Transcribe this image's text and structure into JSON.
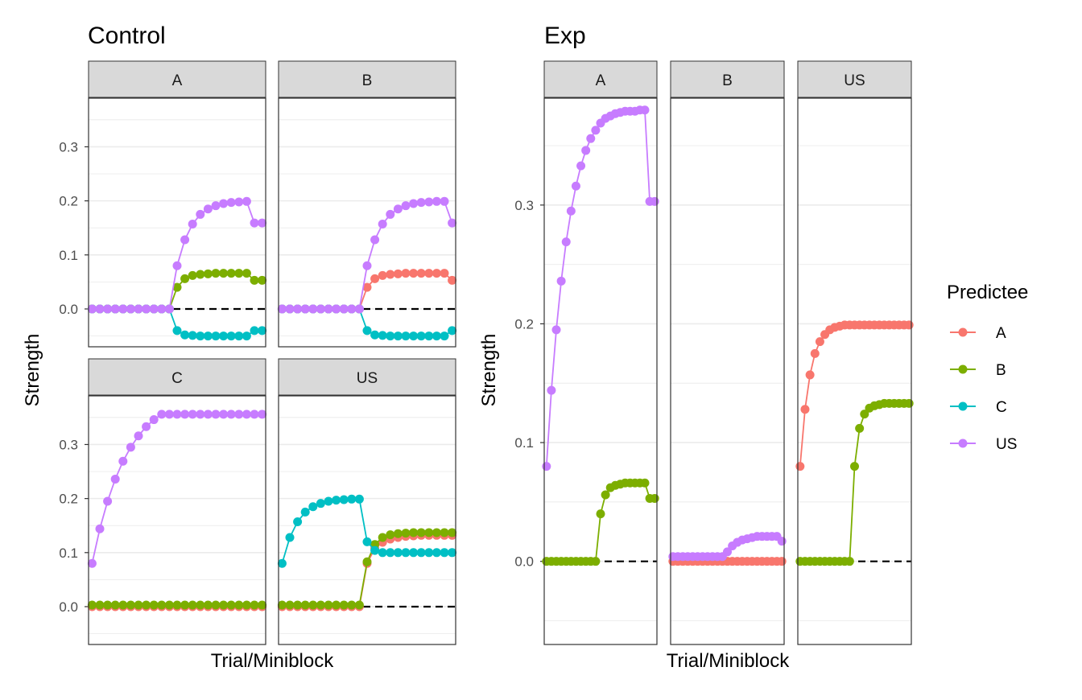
{
  "chart_data": {
    "type": "line",
    "legend": {
      "title": "Predictee",
      "placement": "right",
      "entries": [
        {
          "name": "A",
          "color": "#F8766D"
        },
        {
          "name": "B",
          "color": "#7CAE00"
        },
        {
          "name": "C",
          "color": "#00BFC4"
        },
        {
          "name": "US",
          "color": "#C77CFF"
        }
      ]
    },
    "groups": [
      {
        "title": "Control",
        "xlabel": "Trial/Miniblock",
        "ylabel": "Strength",
        "y_ticks": [
          0.0,
          0.1,
          0.2,
          0.3
        ],
        "y_tick_labels": [
          "0.0",
          "0.1",
          "0.2",
          "0.3"
        ],
        "n_points": 23,
        "facet_rows": [
          {
            "ylim": [
              -0.07,
              0.39
            ],
            "panels": [
              {
                "strip": "A",
                "series": [
                  {
                    "name": "B",
                    "values": [
                      0,
                      0,
                      0,
                      0,
                      0,
                      0,
                      0,
                      0,
                      0,
                      0,
                      0,
                      0.04,
                      0.056,
                      0.062,
                      0.064,
                      0.065,
                      0.066,
                      0.066,
                      0.066,
                      0.066,
                      0.066,
                      0.053,
                      0.053
                    ]
                  },
                  {
                    "name": "C",
                    "values": [
                      0,
                      0,
                      0,
                      0,
                      0,
                      0,
                      0,
                      0,
                      0,
                      0,
                      0,
                      -0.04,
                      -0.048,
                      -0.049,
                      -0.05,
                      -0.05,
                      -0.05,
                      -0.05,
                      -0.05,
                      -0.05,
                      -0.05,
                      -0.04,
                      -0.04
                    ]
                  },
                  {
                    "name": "US",
                    "values": [
                      0,
                      0,
                      0,
                      0,
                      0,
                      0,
                      0,
                      0,
                      0,
                      0,
                      0,
                      0.08,
                      0.128,
                      0.157,
                      0.175,
                      0.185,
                      0.191,
                      0.195,
                      0.197,
                      0.198,
                      0.199,
                      0.159,
                      0.159
                    ]
                  }
                ]
              },
              {
                "strip": "B",
                "series": [
                  {
                    "name": "A",
                    "values": [
                      0,
                      0,
                      0,
                      0,
                      0,
                      0,
                      0,
                      0,
                      0,
                      0,
                      0,
                      0.04,
                      0.056,
                      0.062,
                      0.064,
                      0.065,
                      0.066,
                      0.066,
                      0.066,
                      0.066,
                      0.066,
                      0.066,
                      0.053
                    ]
                  },
                  {
                    "name": "C",
                    "values": [
                      0,
                      0,
                      0,
                      0,
                      0,
                      0,
                      0,
                      0,
                      0,
                      0,
                      0,
                      -0.04,
                      -0.048,
                      -0.049,
                      -0.05,
                      -0.05,
                      -0.05,
                      -0.05,
                      -0.05,
                      -0.05,
                      -0.05,
                      -0.05,
                      -0.04
                    ]
                  },
                  {
                    "name": "US",
                    "values": [
                      0,
                      0,
                      0,
                      0,
                      0,
                      0,
                      0,
                      0,
                      0,
                      0,
                      0,
                      0.08,
                      0.128,
                      0.157,
                      0.175,
                      0.185,
                      0.191,
                      0.195,
                      0.197,
                      0.198,
                      0.199,
                      0.199,
                      0.159
                    ]
                  }
                ]
              }
            ]
          },
          {
            "ylim": [
              -0.07,
              0.39
            ],
            "panels": [
              {
                "strip": "C",
                "series": [
                  {
                    "name": "A",
                    "values": [
                      0,
                      0,
                      0,
                      0,
                      0,
                      0,
                      0,
                      0,
                      0,
                      0,
                      0,
                      0,
                      0,
                      0,
                      0,
                      0,
                      0,
                      0,
                      0,
                      0,
                      0,
                      0,
                      0
                    ]
                  },
                  {
                    "name": "B",
                    "values": [
                      0.003,
                      0.003,
                      0.003,
                      0.003,
                      0.003,
                      0.003,
                      0.003,
                      0.003,
                      0.003,
                      0.003,
                      0.003,
                      0.003,
                      0.003,
                      0.003,
                      0.003,
                      0.003,
                      0.003,
                      0.003,
                      0.003,
                      0.003,
                      0.003,
                      0.003,
                      0.003
                    ]
                  },
                  {
                    "name": "US",
                    "values": [
                      0.08,
                      0.144,
                      0.195,
                      0.236,
                      0.269,
                      0.295,
                      0.316,
                      0.333,
                      0.346,
                      0.356,
                      0.356,
                      0.356,
                      0.356,
                      0.356,
                      0.356,
                      0.356,
                      0.356,
                      0.356,
                      0.356,
                      0.356,
                      0.356,
                      0.356,
                      0.356
                    ]
                  }
                ]
              },
              {
                "strip": "US",
                "series": [
                  {
                    "name": "A",
                    "values": [
                      0,
                      0,
                      0,
                      0,
                      0,
                      0,
                      0,
                      0,
                      0,
                      0,
                      0,
                      0.08,
                      0.108,
                      0.119,
                      0.125,
                      0.128,
                      0.13,
                      0.131,
                      0.132,
                      0.132,
                      0.132,
                      0.132,
                      0.132
                    ]
                  },
                  {
                    "name": "B",
                    "values": [
                      0.003,
                      0.003,
                      0.003,
                      0.003,
                      0.003,
                      0.003,
                      0.003,
                      0.003,
                      0.003,
                      0.003,
                      0.003,
                      0.083,
                      0.115,
                      0.128,
                      0.133,
                      0.135,
                      0.136,
                      0.137,
                      0.137,
                      0.137,
                      0.137,
                      0.137,
                      0.137
                    ]
                  },
                  {
                    "name": "C",
                    "values": [
                      0.08,
                      0.128,
                      0.157,
                      0.175,
                      0.185,
                      0.191,
                      0.195,
                      0.197,
                      0.198,
                      0.199,
                      0.199,
                      0.12,
                      0.104,
                      0.1,
                      0.1,
                      0.1,
                      0.1,
                      0.1,
                      0.1,
                      0.1,
                      0.1,
                      0.1,
                      0.1
                    ]
                  }
                ]
              }
            ]
          }
        ]
      },
      {
        "title": "Exp",
        "xlabel": "Trial/Miniblock",
        "ylabel": "Strength",
        "y_ticks": [
          0.0,
          0.1,
          0.2,
          0.3
        ],
        "y_tick_labels": [
          "0.0",
          "0.1",
          "0.2",
          "0.3"
        ],
        "n_points": 23,
        "facet_rows": [
          {
            "ylim": [
              -0.07,
              0.39
            ],
            "panels": [
              {
                "strip": "A",
                "series": [
                  {
                    "name": "B",
                    "values": [
                      0,
                      0,
                      0,
                      0,
                      0,
                      0,
                      0,
                      0,
                      0,
                      0,
                      0,
                      0.04,
                      0.056,
                      0.062,
                      0.064,
                      0.065,
                      0.066,
                      0.066,
                      0.066,
                      0.066,
                      0.066,
                      0.053,
                      0.053
                    ]
                  },
                  {
                    "name": "US",
                    "values": [
                      0.08,
                      0.144,
                      0.195,
                      0.236,
                      0.269,
                      0.295,
                      0.316,
                      0.333,
                      0.346,
                      0.356,
                      0.363,
                      0.369,
                      0.373,
                      0.375,
                      0.377,
                      0.378,
                      0.379,
                      0.379,
                      0.379,
                      0.38,
                      0.38,
                      0.303,
                      0.303
                    ]
                  }
                ]
              },
              {
                "strip": "B",
                "series": [
                  {
                    "name": "A",
                    "values": [
                      0,
                      0,
                      0,
                      0,
                      0,
                      0,
                      0,
                      0,
                      0,
                      0,
                      0,
                      0,
                      0,
                      0,
                      0,
                      0,
                      0,
                      0,
                      0,
                      0,
                      0,
                      0,
                      0
                    ]
                  },
                  {
                    "name": "US",
                    "values": [
                      0.004,
                      0.004,
                      0.004,
                      0.004,
                      0.004,
                      0.004,
                      0.004,
                      0.004,
                      0.004,
                      0.004,
                      0.004,
                      0.008,
                      0.013,
                      0.016,
                      0.018,
                      0.019,
                      0.02,
                      0.021,
                      0.021,
                      0.021,
                      0.021,
                      0.021,
                      0.017
                    ]
                  }
                ]
              },
              {
                "strip": "US",
                "series": [
                  {
                    "name": "A",
                    "values": [
                      0.08,
                      0.128,
                      0.157,
                      0.175,
                      0.185,
                      0.191,
                      0.195,
                      0.197,
                      0.198,
                      0.199,
                      0.199,
                      0.199,
                      0.199,
                      0.199,
                      0.199,
                      0.199,
                      0.199,
                      0.199,
                      0.199,
                      0.199,
                      0.199,
                      0.199,
                      0.199
                    ]
                  },
                  {
                    "name": "B",
                    "values": [
                      0,
                      0,
                      0,
                      0,
                      0,
                      0,
                      0,
                      0,
                      0,
                      0,
                      0,
                      0.08,
                      0.112,
                      0.124,
                      0.129,
                      0.131,
                      0.132,
                      0.133,
                      0.133,
                      0.133,
                      0.133,
                      0.133,
                      0.133
                    ]
                  }
                ]
              }
            ]
          }
        ]
      }
    ]
  }
}
